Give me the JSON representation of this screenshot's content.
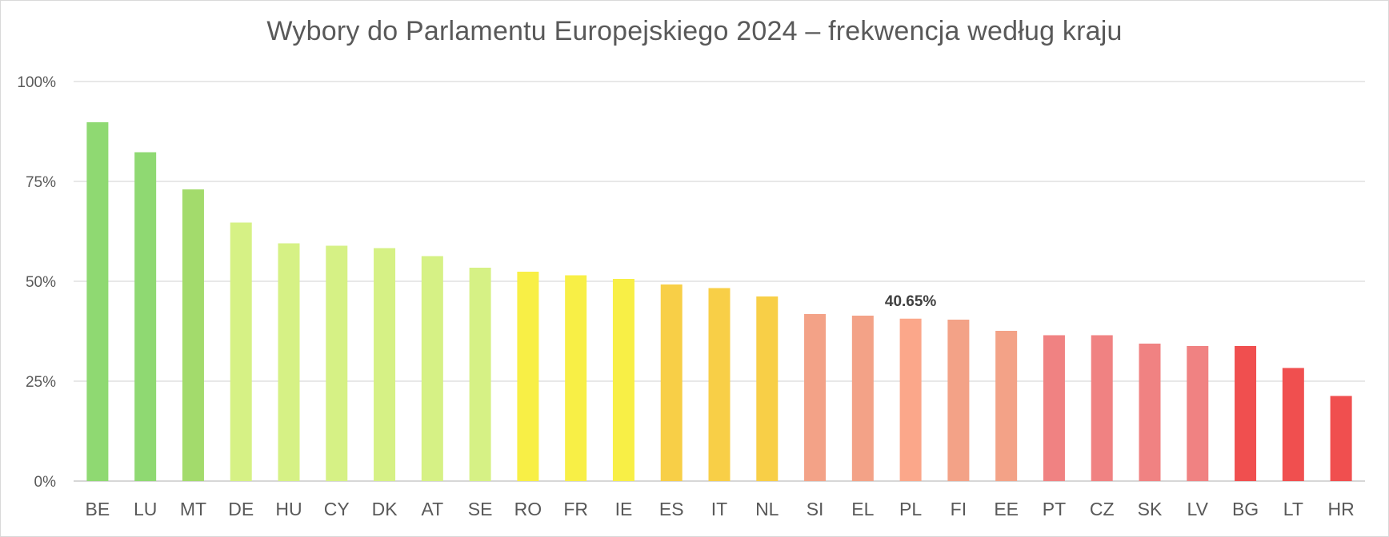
{
  "chart_data": {
    "type": "bar",
    "title": "Wybory do Parlamentu Europejskiego 2024  –  frekwencja według kraju",
    "xlabel": "",
    "ylabel": "",
    "ylim": [
      0,
      100
    ],
    "yticks": [
      0,
      25,
      50,
      75,
      100
    ],
    "ytick_labels": [
      "0%",
      "25%",
      "50%",
      "75%",
      "100%"
    ],
    "grid": true,
    "legend": "none",
    "categories": [
      "BE",
      "LU",
      "MT",
      "DE",
      "HU",
      "CY",
      "DK",
      "AT",
      "SE",
      "RO",
      "FR",
      "IE",
      "ES",
      "IT",
      "NL",
      "SI",
      "EL",
      "PL",
      "FI",
      "EE",
      "PT",
      "CZ",
      "SK",
      "LV",
      "BG",
      "LT",
      "HR"
    ],
    "values": [
      89.8,
      82.3,
      73.0,
      64.7,
      59.5,
      58.9,
      58.3,
      56.3,
      53.4,
      52.4,
      51.5,
      50.6,
      49.2,
      48.3,
      46.2,
      41.8,
      41.4,
      40.65,
      40.4,
      37.6,
      36.5,
      36.5,
      34.4,
      33.8,
      33.8,
      28.3,
      21.3
    ],
    "colors": [
      "#8fd972",
      "#8fd972",
      "#a3db6c",
      "#d6f185",
      "#d6f185",
      "#d6f185",
      "#d6f185",
      "#d6f185",
      "#d6f185",
      "#f8ef46",
      "#f8ef46",
      "#f8ef46",
      "#f8cf47",
      "#f8cf47",
      "#f8cf47",
      "#f3a287",
      "#f3a287",
      "#fba78a",
      "#f3a287",
      "#f3a287",
      "#f08282",
      "#f08282",
      "#f08282",
      "#f08282",
      "#f04f4f",
      "#f04f4f",
      "#f04f4f"
    ],
    "data_labels": [
      {
        "category": "PL",
        "text": "40.65%"
      }
    ]
  }
}
